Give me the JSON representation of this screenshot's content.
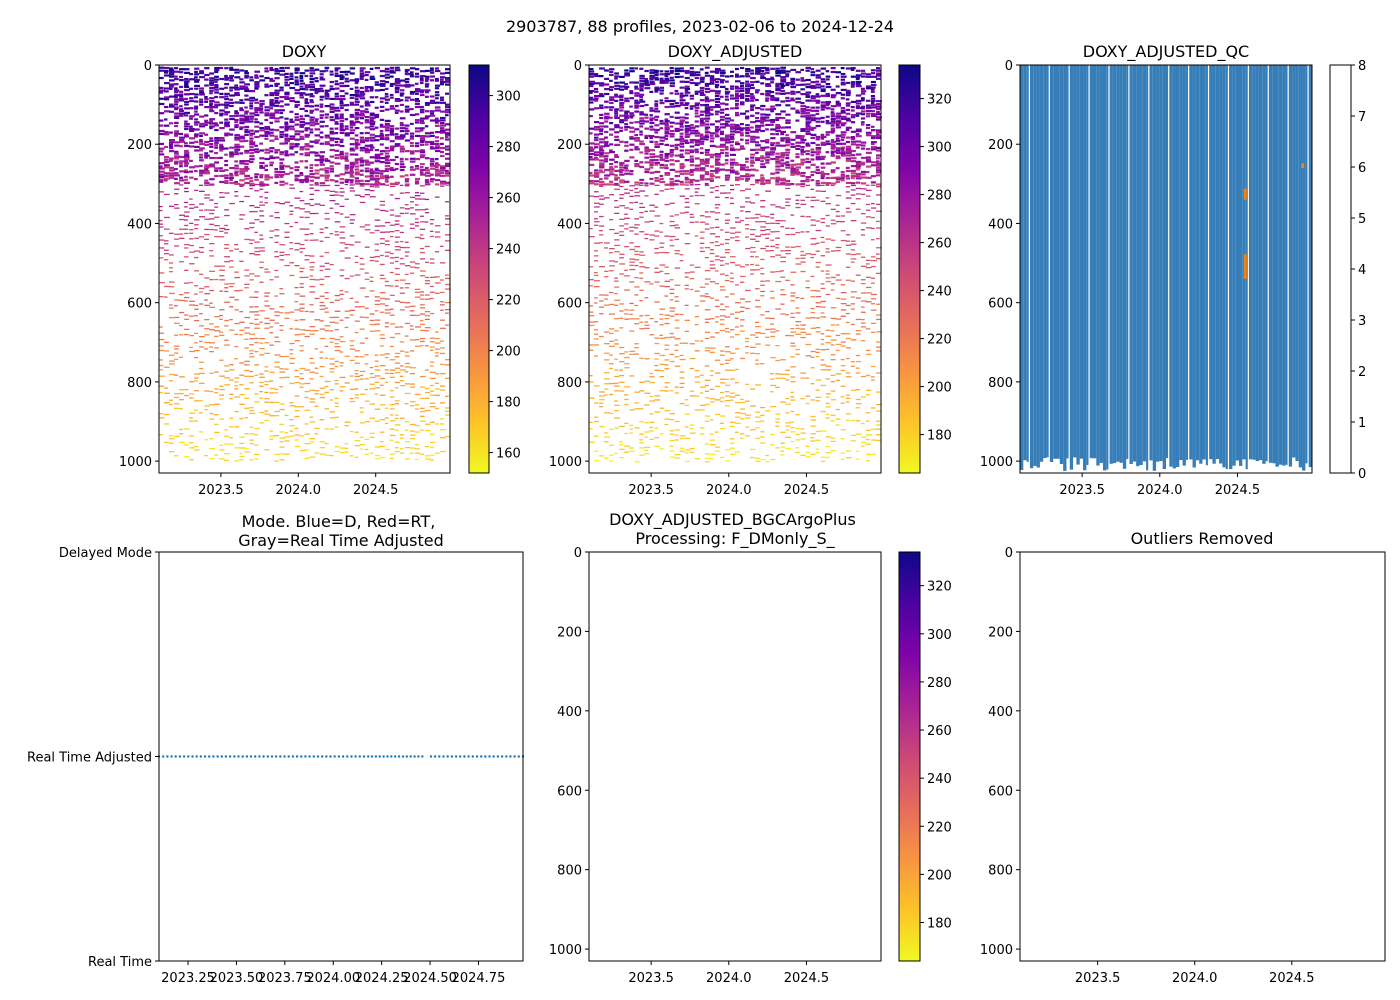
{
  "suptitle": "2903787, 88 profiles, 2023-02-06 to 2024-12-24",
  "chart_data": [
    {
      "id": "doxy",
      "type": "heatmap",
      "title": "DOXY",
      "xlim": [
        2023.1,
        2024.98
      ],
      "ylim": [
        1030,
        0
      ],
      "x_ticks": [
        {
          "value": 2023.5,
          "label": "2023.5"
        },
        {
          "value": 2024.0,
          "label": "2024.0"
        },
        {
          "value": 2024.5,
          "label": "2024.5"
        }
      ],
      "y_ticks": [
        {
          "value": 0,
          "label": "0"
        },
        {
          "value": 200,
          "label": "200"
        },
        {
          "value": 400,
          "label": "400"
        },
        {
          "value": 600,
          "label": "600"
        },
        {
          "value": 800,
          "label": "800"
        },
        {
          "value": 1000,
          "label": "1000"
        }
      ],
      "colormap": "plasma_r",
      "colorbar": {
        "vmin": 152,
        "vmax": 312,
        "ticks": [
          {
            "value": 160,
            "label": "160"
          },
          {
            "value": 180,
            "label": "180"
          },
          {
            "value": 200,
            "label": "200"
          },
          {
            "value": 220,
            "label": "220"
          },
          {
            "value": 240,
            "label": "240"
          },
          {
            "value": 260,
            "label": "260"
          },
          {
            "value": 280,
            "label": "280"
          },
          {
            "value": 300,
            "label": "300"
          }
        ]
      },
      "profile": {
        "value_at_surface": 300,
        "value_at_300": 250,
        "value_at_1000": 160
      }
    },
    {
      "id": "doxy_adjusted",
      "type": "heatmap",
      "title": "DOXY_ADJUSTED",
      "xlim": [
        2023.1,
        2024.98
      ],
      "ylim": [
        1030,
        0
      ],
      "x_ticks": [
        {
          "value": 2023.5,
          "label": "2023.5"
        },
        {
          "value": 2024.0,
          "label": "2024.0"
        },
        {
          "value": 2024.5,
          "label": "2024.5"
        }
      ],
      "y_ticks": [
        {
          "value": 0,
          "label": "0"
        },
        {
          "value": 200,
          "label": "200"
        },
        {
          "value": 400,
          "label": "400"
        },
        {
          "value": 600,
          "label": "600"
        },
        {
          "value": 800,
          "label": "800"
        },
        {
          "value": 1000,
          "label": "1000"
        }
      ],
      "colormap": "plasma_r",
      "colorbar": {
        "vmin": 164,
        "vmax": 334,
        "ticks": [
          {
            "value": 180,
            "label": "180"
          },
          {
            "value": 200,
            "label": "200"
          },
          {
            "value": 220,
            "label": "220"
          },
          {
            "value": 240,
            "label": "240"
          },
          {
            "value": 260,
            "label": "260"
          },
          {
            "value": 280,
            "label": "280"
          },
          {
            "value": 300,
            "label": "300"
          },
          {
            "value": 320,
            "label": "320"
          }
        ]
      },
      "profile": {
        "value_at_surface": 320,
        "value_at_300": 262,
        "value_at_1000": 170
      }
    },
    {
      "id": "doxy_adjusted_qc",
      "type": "heatmap",
      "title": "DOXY_ADJUSTED_QC",
      "xlim": [
        2023.1,
        2024.98
      ],
      "ylim": [
        1030,
        0
      ],
      "x_ticks": [
        {
          "value": 2023.5,
          "label": "2023.5"
        },
        {
          "value": 2024.0,
          "label": "2024.0"
        },
        {
          "value": 2024.5,
          "label": "2024.5"
        }
      ],
      "y_ticks": [
        {
          "value": 0,
          "label": "0"
        },
        {
          "value": 200,
          "label": "200"
        },
        {
          "value": 400,
          "label": "400"
        },
        {
          "value": 600,
          "label": "600"
        },
        {
          "value": 800,
          "label": "800"
        },
        {
          "value": 1000,
          "label": "1000"
        }
      ],
      "qc_colors": [
        "#e41a1c",
        "#377eb8",
        "#4daf4a",
        "#984ea3",
        "#ff7f00",
        "#ffff33",
        "#a65628",
        "#f781bf",
        "#999999"
      ],
      "colorbar": {
        "vmin": 0,
        "vmax": 8,
        "ticks": [
          {
            "value": 0,
            "label": "0"
          },
          {
            "value": 1,
            "label": "1"
          },
          {
            "value": 2,
            "label": "2"
          },
          {
            "value": 3,
            "label": "3"
          },
          {
            "value": 4,
            "label": "4"
          },
          {
            "value": 5,
            "label": "5"
          },
          {
            "value": 6,
            "label": "6"
          },
          {
            "value": 7,
            "label": "7"
          },
          {
            "value": 8,
            "label": "8"
          }
        ]
      },
      "profile_depth_range": [
        990,
        1025
      ],
      "qc4_points": [
        {
          "x": 2024.55,
          "y_top": 312,
          "y_bottom": 340
        },
        {
          "x": 2024.55,
          "y_top": 478,
          "y_bottom": 540
        },
        {
          "x": 2024.92,
          "y_top": 248,
          "y_bottom": 260
        }
      ]
    },
    {
      "id": "mode",
      "type": "scatter",
      "title": "Mode. Blue=D, Red=RT,\nGray=Real Time Adjusted",
      "xlim": [
        2023.1,
        2024.98
      ],
      "ylim": [
        0,
        2
      ],
      "x_ticks": [
        {
          "value": 2023.25,
          "label": "2023.25"
        },
        {
          "value": 2023.5,
          "label": "2023.50"
        },
        {
          "value": 2023.75,
          "label": "2023.75"
        },
        {
          "value": 2024.0,
          "label": "2024.00"
        },
        {
          "value": 2024.25,
          "label": "2024.25"
        },
        {
          "value": 2024.5,
          "label": "2024.50"
        },
        {
          "value": 2024.75,
          "label": "2024.75"
        }
      ],
      "y_ticks": [
        {
          "value": 0,
          "label": "Real Time"
        },
        {
          "value": 1,
          "label": "Real Time Adjusted"
        },
        {
          "value": 2,
          "label": "Delayed Mode"
        }
      ],
      "points_y": 1,
      "point_color": "#1f77b4",
      "n_points": 88
    },
    {
      "id": "bgc_plus",
      "type": "heatmap",
      "title": "DOXY_ADJUSTED_BGCArgoPlus\nProcessing: F_DMonly_S_",
      "xlim": [
        2023.1,
        2024.98
      ],
      "ylim": [
        1030,
        0
      ],
      "x_ticks": [
        {
          "value": 2023.5,
          "label": "2023.5"
        },
        {
          "value": 2024.0,
          "label": "2024.0"
        },
        {
          "value": 2024.5,
          "label": "2024.5"
        }
      ],
      "y_ticks": [
        {
          "value": 0,
          "label": "0"
        },
        {
          "value": 200,
          "label": "200"
        },
        {
          "value": 400,
          "label": "400"
        },
        {
          "value": 600,
          "label": "600"
        },
        {
          "value": 800,
          "label": "800"
        },
        {
          "value": 1000,
          "label": "1000"
        }
      ],
      "colormap": "plasma_r",
      "colorbar": {
        "vmin": 164,
        "vmax": 334,
        "ticks": [
          {
            "value": 180,
            "label": "180"
          },
          {
            "value": 200,
            "label": "200"
          },
          {
            "value": 220,
            "label": "220"
          },
          {
            "value": 240,
            "label": "240"
          },
          {
            "value": 260,
            "label": "260"
          },
          {
            "value": 280,
            "label": "280"
          },
          {
            "value": 300,
            "label": "300"
          },
          {
            "value": 320,
            "label": "320"
          }
        ]
      },
      "data": "empty"
    },
    {
      "id": "outliers",
      "type": "scatter",
      "title": "Outliers Removed",
      "xlim": [
        2023.1,
        2024.98
      ],
      "ylim": [
        1030,
        0
      ],
      "x_ticks": [
        {
          "value": 2023.5,
          "label": "2023.5"
        },
        {
          "value": 2024.0,
          "label": "2024.0"
        },
        {
          "value": 2024.5,
          "label": "2024.5"
        }
      ],
      "y_ticks": [
        {
          "value": 0,
          "label": "0"
        },
        {
          "value": 200,
          "label": "200"
        },
        {
          "value": 400,
          "label": "400"
        },
        {
          "value": 600,
          "label": "600"
        },
        {
          "value": 800,
          "label": "800"
        },
        {
          "value": 1000,
          "label": "1000"
        }
      ],
      "data": "empty"
    }
  ]
}
